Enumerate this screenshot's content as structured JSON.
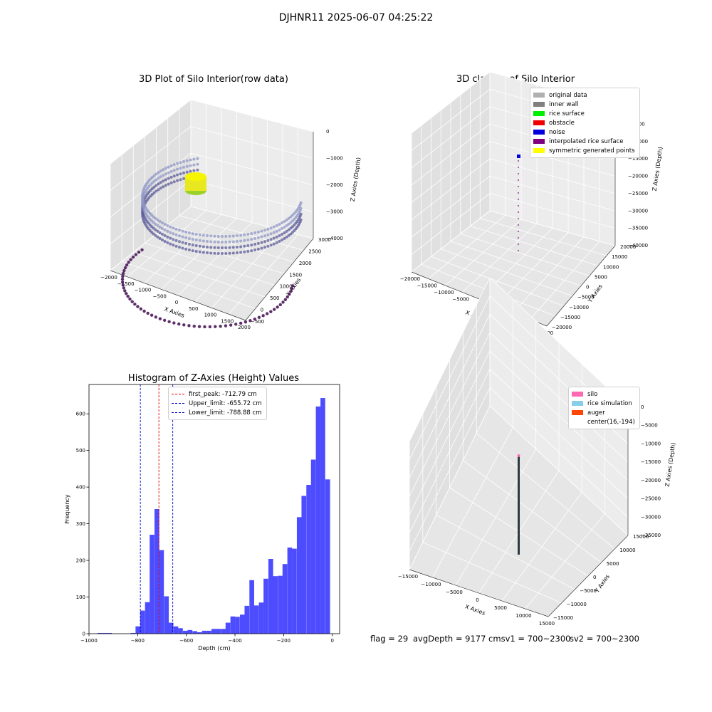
{
  "suptitle": "DJHNR11 2025-06-07 04:25:22",
  "panels": {
    "raw": {
      "title": "3D Plot of Silo Interior(row data)",
      "xlabel": "X Axies",
      "ylabel": "Y Axies",
      "zlabel": "Z Axies (Depth)",
      "xticks": [
        "−2000",
        "−1500",
        "−1000",
        "−500",
        "0",
        "500",
        "1000",
        "1500",
        "2000"
      ],
      "yticks": [
        "−500",
        "0",
        "500",
        "1000",
        "1500",
        "2000",
        "2500",
        "3000"
      ],
      "zticks": [
        "0",
        "−1000",
        "−2000",
        "−3000",
        "−4000"
      ]
    },
    "classify": {
      "title": "3D classify of Silo Interior",
      "xlabel": "X Axies",
      "ylabel": "Y Axies",
      "zlabel": "Z Axies (Depth)",
      "xticks": [
        "−20000",
        "−15000",
        "−10000",
        "−5000",
        "0",
        "5000",
        "10000",
        "15000",
        "20000"
      ],
      "yticks": [
        "−20000",
        "−15000",
        "−10000",
        "−5000",
        "0",
        "5000",
        "10000",
        "15000",
        "20000"
      ],
      "zticks": [
        "0",
        "−5000",
        "−10000",
        "−15000",
        "−20000",
        "−25000",
        "−30000",
        "−35000",
        "−40000"
      ],
      "legend": [
        {
          "label": "original data",
          "color": "#b0b0b0"
        },
        {
          "label": "inner wall",
          "color": "#808080"
        },
        {
          "label": "rice surface",
          "color": "#00ee00"
        },
        {
          "label": "obstacle",
          "color": "#ee0000"
        },
        {
          "label": "noise",
          "color": "#0000dd"
        },
        {
          "label": "interpolated rice surface",
          "color": "#800080"
        },
        {
          "label": "symmetric generated points",
          "color": "#ffff00"
        }
      ]
    },
    "simulation": {
      "title": "3D simulation of Silo Interior",
      "xlabel": "X Axies",
      "ylabel": "Y Axies",
      "zlabel": "Z Axies (Depth)",
      "xticks": [
        "−15000",
        "−10000",
        "−5000",
        "0",
        "5000",
        "10000",
        "15000"
      ],
      "yticks": [
        "−15000",
        "−10000",
        "−5000",
        "0",
        "5000",
        "10000",
        "15000"
      ],
      "zticks": [
        "0",
        "−5000",
        "−10000",
        "−15000",
        "−20000",
        "−25000",
        "−30000",
        "−35000"
      ],
      "legend": [
        {
          "label": "silo",
          "color": "#ff69b4"
        },
        {
          "label": "rice simulation",
          "color": "#87ceeb"
        },
        {
          "label": "auger",
          "color": "#ff4500"
        },
        {
          "label": "center(16,-194)",
          "color": ""
        }
      ]
    }
  },
  "bottom": {
    "flag": "flag = 29",
    "avg": "avgDepth = 9177 cmsv1 = 700~2300",
    "sv2": "sv2 = 700~2300"
  },
  "chart_data": {
    "type": "bar",
    "title": "Histogram of Z-Axies (Height) Values",
    "xlabel": "Depth (cm)",
    "ylabel": "Frequency",
    "xlim": [
      -1000,
      30
    ],
    "ylim": [
      0,
      680
    ],
    "xticks": [
      -1000,
      -800,
      -600,
      -400,
      -200,
      0
    ],
    "yticks": [
      0,
      100,
      200,
      300,
      400,
      500,
      600
    ],
    "bar_color": "#4d4dff",
    "bin_width": 19.5,
    "bins": [
      {
        "x": -975,
        "v": 0
      },
      {
        "x": -955,
        "v": 2
      },
      {
        "x": -936,
        "v": 2
      },
      {
        "x": -916,
        "v": 2
      },
      {
        "x": -897,
        "v": 0
      },
      {
        "x": -877,
        "v": 0
      },
      {
        "x": -858,
        "v": 0
      },
      {
        "x": -838,
        "v": 0
      },
      {
        "x": -819,
        "v": 2
      },
      {
        "x": -799,
        "v": 20
      },
      {
        "x": -780,
        "v": 63
      },
      {
        "x": -760,
        "v": 86
      },
      {
        "x": -741,
        "v": 270
      },
      {
        "x": -721,
        "v": 340
      },
      {
        "x": -702,
        "v": 228
      },
      {
        "x": -682,
        "v": 102
      },
      {
        "x": -663,
        "v": 30
      },
      {
        "x": -643,
        "v": 20
      },
      {
        "x": -624,
        "v": 15
      },
      {
        "x": -604,
        "v": 8
      },
      {
        "x": -585,
        "v": 10
      },
      {
        "x": -565,
        "v": 7
      },
      {
        "x": -546,
        "v": 4
      },
      {
        "x": -526,
        "v": 8
      },
      {
        "x": -507,
        "v": 8
      },
      {
        "x": -487,
        "v": 13
      },
      {
        "x": -468,
        "v": 13
      },
      {
        "x": -448,
        "v": 13
      },
      {
        "x": -429,
        "v": 30
      },
      {
        "x": -409,
        "v": 47
      },
      {
        "x": -390,
        "v": 46
      },
      {
        "x": -370,
        "v": 52
      },
      {
        "x": -351,
        "v": 76
      },
      {
        "x": -331,
        "v": 146
      },
      {
        "x": -312,
        "v": 77
      },
      {
        "x": -292,
        "v": 85
      },
      {
        "x": -273,
        "v": 150
      },
      {
        "x": -253,
        "v": 204
      },
      {
        "x": -234,
        "v": 157
      },
      {
        "x": -214,
        "v": 158
      },
      {
        "x": -195,
        "v": 190
      },
      {
        "x": -175,
        "v": 235
      },
      {
        "x": -156,
        "v": 232
      },
      {
        "x": -136,
        "v": 318
      },
      {
        "x": -117,
        "v": 376
      },
      {
        "x": -97,
        "v": 406
      },
      {
        "x": -78,
        "v": 475
      },
      {
        "x": -58,
        "v": 620
      },
      {
        "x": -39,
        "v": 643
      },
      {
        "x": -19,
        "v": 421
      }
    ],
    "lines": [
      {
        "label": "first_peak: -712.79 cm",
        "value": -712.79,
        "color": "#e60000"
      },
      {
        "label": "Upper_limit: -655.72 cm",
        "value": -655.72,
        "color": "#0000cc"
      },
      {
        "label": "Lower_limit: -788.88 cm",
        "value": -788.88,
        "color": "#0000cc"
      }
    ]
  }
}
